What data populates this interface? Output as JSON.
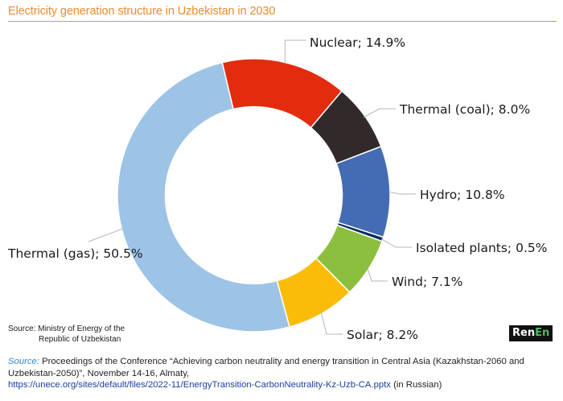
{
  "header": {
    "title": "Electricity generation structure in Uzbekistan in 2030"
  },
  "chart_data": {
    "type": "pie",
    "subtype": "donut",
    "title": "Electricity generation structure in Uzbekistan in 2030",
    "unit": "%",
    "categories": [
      "Nuclear",
      "Thermal (coal)",
      "Hydro",
      "Isolated plants",
      "Wind",
      "Solar",
      "Thermal (gas)"
    ],
    "values": [
      14.9,
      8.0,
      10.8,
      0.5,
      7.1,
      8.2,
      50.5
    ],
    "labels": [
      "Nuclear;  14.9%",
      "Thermal (coal);  8.0%",
      "Hydro;  10.8%",
      "Isolated plants;  0.5%",
      "Wind; 7.1%",
      "Solar;  8.2%",
      "Thermal (gas);  50.5%"
    ],
    "colors": [
      "#e32c0e",
      "#322a2a",
      "#446cb3",
      "#0d2d5e",
      "#8cbf3f",
      "#fbbc09",
      "#9dc3e6"
    ],
    "direction": "clockwise",
    "legend": "none (data labels with leader lines)"
  },
  "source_note": {
    "line1": "Source: Ministry of Energy of the",
    "line2": "Republic of Uzbekistan"
  },
  "logo": {
    "part1": "Ren",
    "part2": "En"
  },
  "footer": {
    "source_label": "Source:",
    "text1": " Proceedings of the Conference “Achieving carbon neutrality and energy transition in Central Asia (Kazakhstan-2060 and Uzbekistan-2050)”, November 14-16, Almaty,",
    "link": "https://unece.org/sites/default/files/2022-11/EnergyTransition-CarbonNeutrality-Kz-Uzb-CA.pptx",
    "text2": " (in Russian)"
  }
}
